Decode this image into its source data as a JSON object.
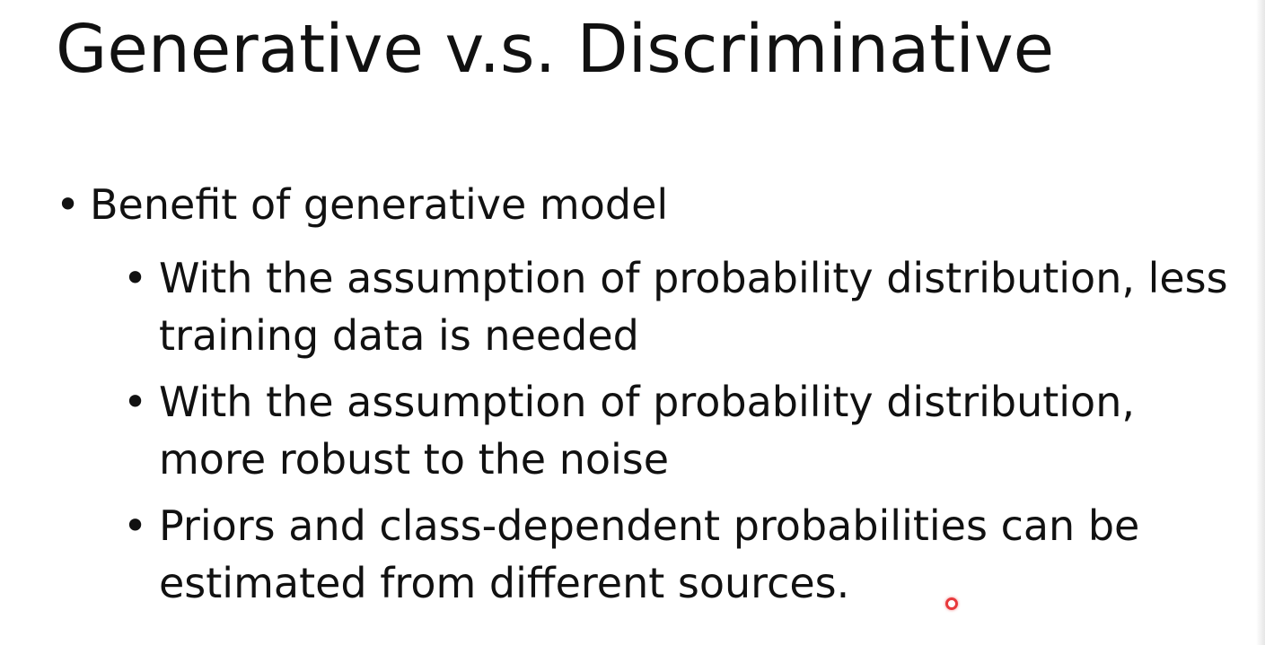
{
  "slide": {
    "title": "Generative v.s. Discriminative",
    "bullet_symbol": "•",
    "main_bullet": "Benefit of generative model",
    "sub_bullets": [
      "With the assumption of probability distribution, less training data is needed",
      "With the assumption of probability distribution, more robust to the noise",
      "Priors and class-dependent probabilities can be estimated from different sources."
    ]
  },
  "colors": {
    "text": "#111111",
    "background": "#ffffff",
    "pointer": "#e8383b"
  },
  "icons": {
    "pointer": "laser-pointer-icon"
  }
}
